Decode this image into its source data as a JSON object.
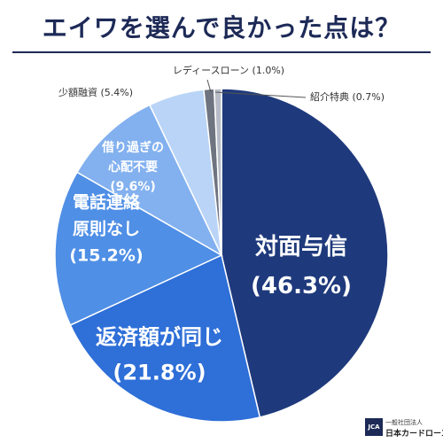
{
  "title": "エイワを選んで良かった点は？",
  "logo": {
    "mark": "JCA",
    "line1": "一般社団法人",
    "line2": "日本カードローン協会"
  },
  "chart_data": {
    "type": "pie",
    "title": "エイワを選んで良かった点は？",
    "slices": [
      {
        "label_lines": [
          "対面与信"
        ],
        "value": 46.3,
        "value_label": "(46.3%)",
        "color": "#1f3a7c",
        "text_color": "#ffffff",
        "label_mode": "inside"
      },
      {
        "label_lines": [
          "返済額が同じ"
        ],
        "value": 21.8,
        "value_label": "(21.8%)",
        "color": "#2e6fd8",
        "text_color": "#ffffff",
        "label_mode": "inside"
      },
      {
        "label_lines": [
          "電話連絡",
          "原則なし"
        ],
        "value": 15.2,
        "value_label": "(15.2%)",
        "color": "#4f8fe6",
        "text_color": "#ffffff",
        "label_mode": "inside"
      },
      {
        "label_lines": [
          "借り過ぎの",
          "心配不要"
        ],
        "value": 9.6,
        "value_label": "(9.6%)",
        "color": "#83b1ef",
        "text_color": "#ffffff",
        "label_mode": "inside"
      },
      {
        "label_lines": [
          "少額融資"
        ],
        "value": 5.4,
        "value_label": "(5.4%)",
        "color": "#b9d4f6",
        "text_color": "#333333",
        "label_mode": "outside"
      },
      {
        "label_lines": [
          "レディースローン"
        ],
        "value": 1.0,
        "value_label": "(1.0%)",
        "color": "#6e7480",
        "text_color": "#333333",
        "label_mode": "outside"
      },
      {
        "label_lines": [
          "紹介特典"
        ],
        "value": 0.7,
        "value_label": "(0.7%)",
        "color": "#b7bcc6",
        "text_color": "#333333",
        "label_mode": "outside"
      }
    ]
  }
}
